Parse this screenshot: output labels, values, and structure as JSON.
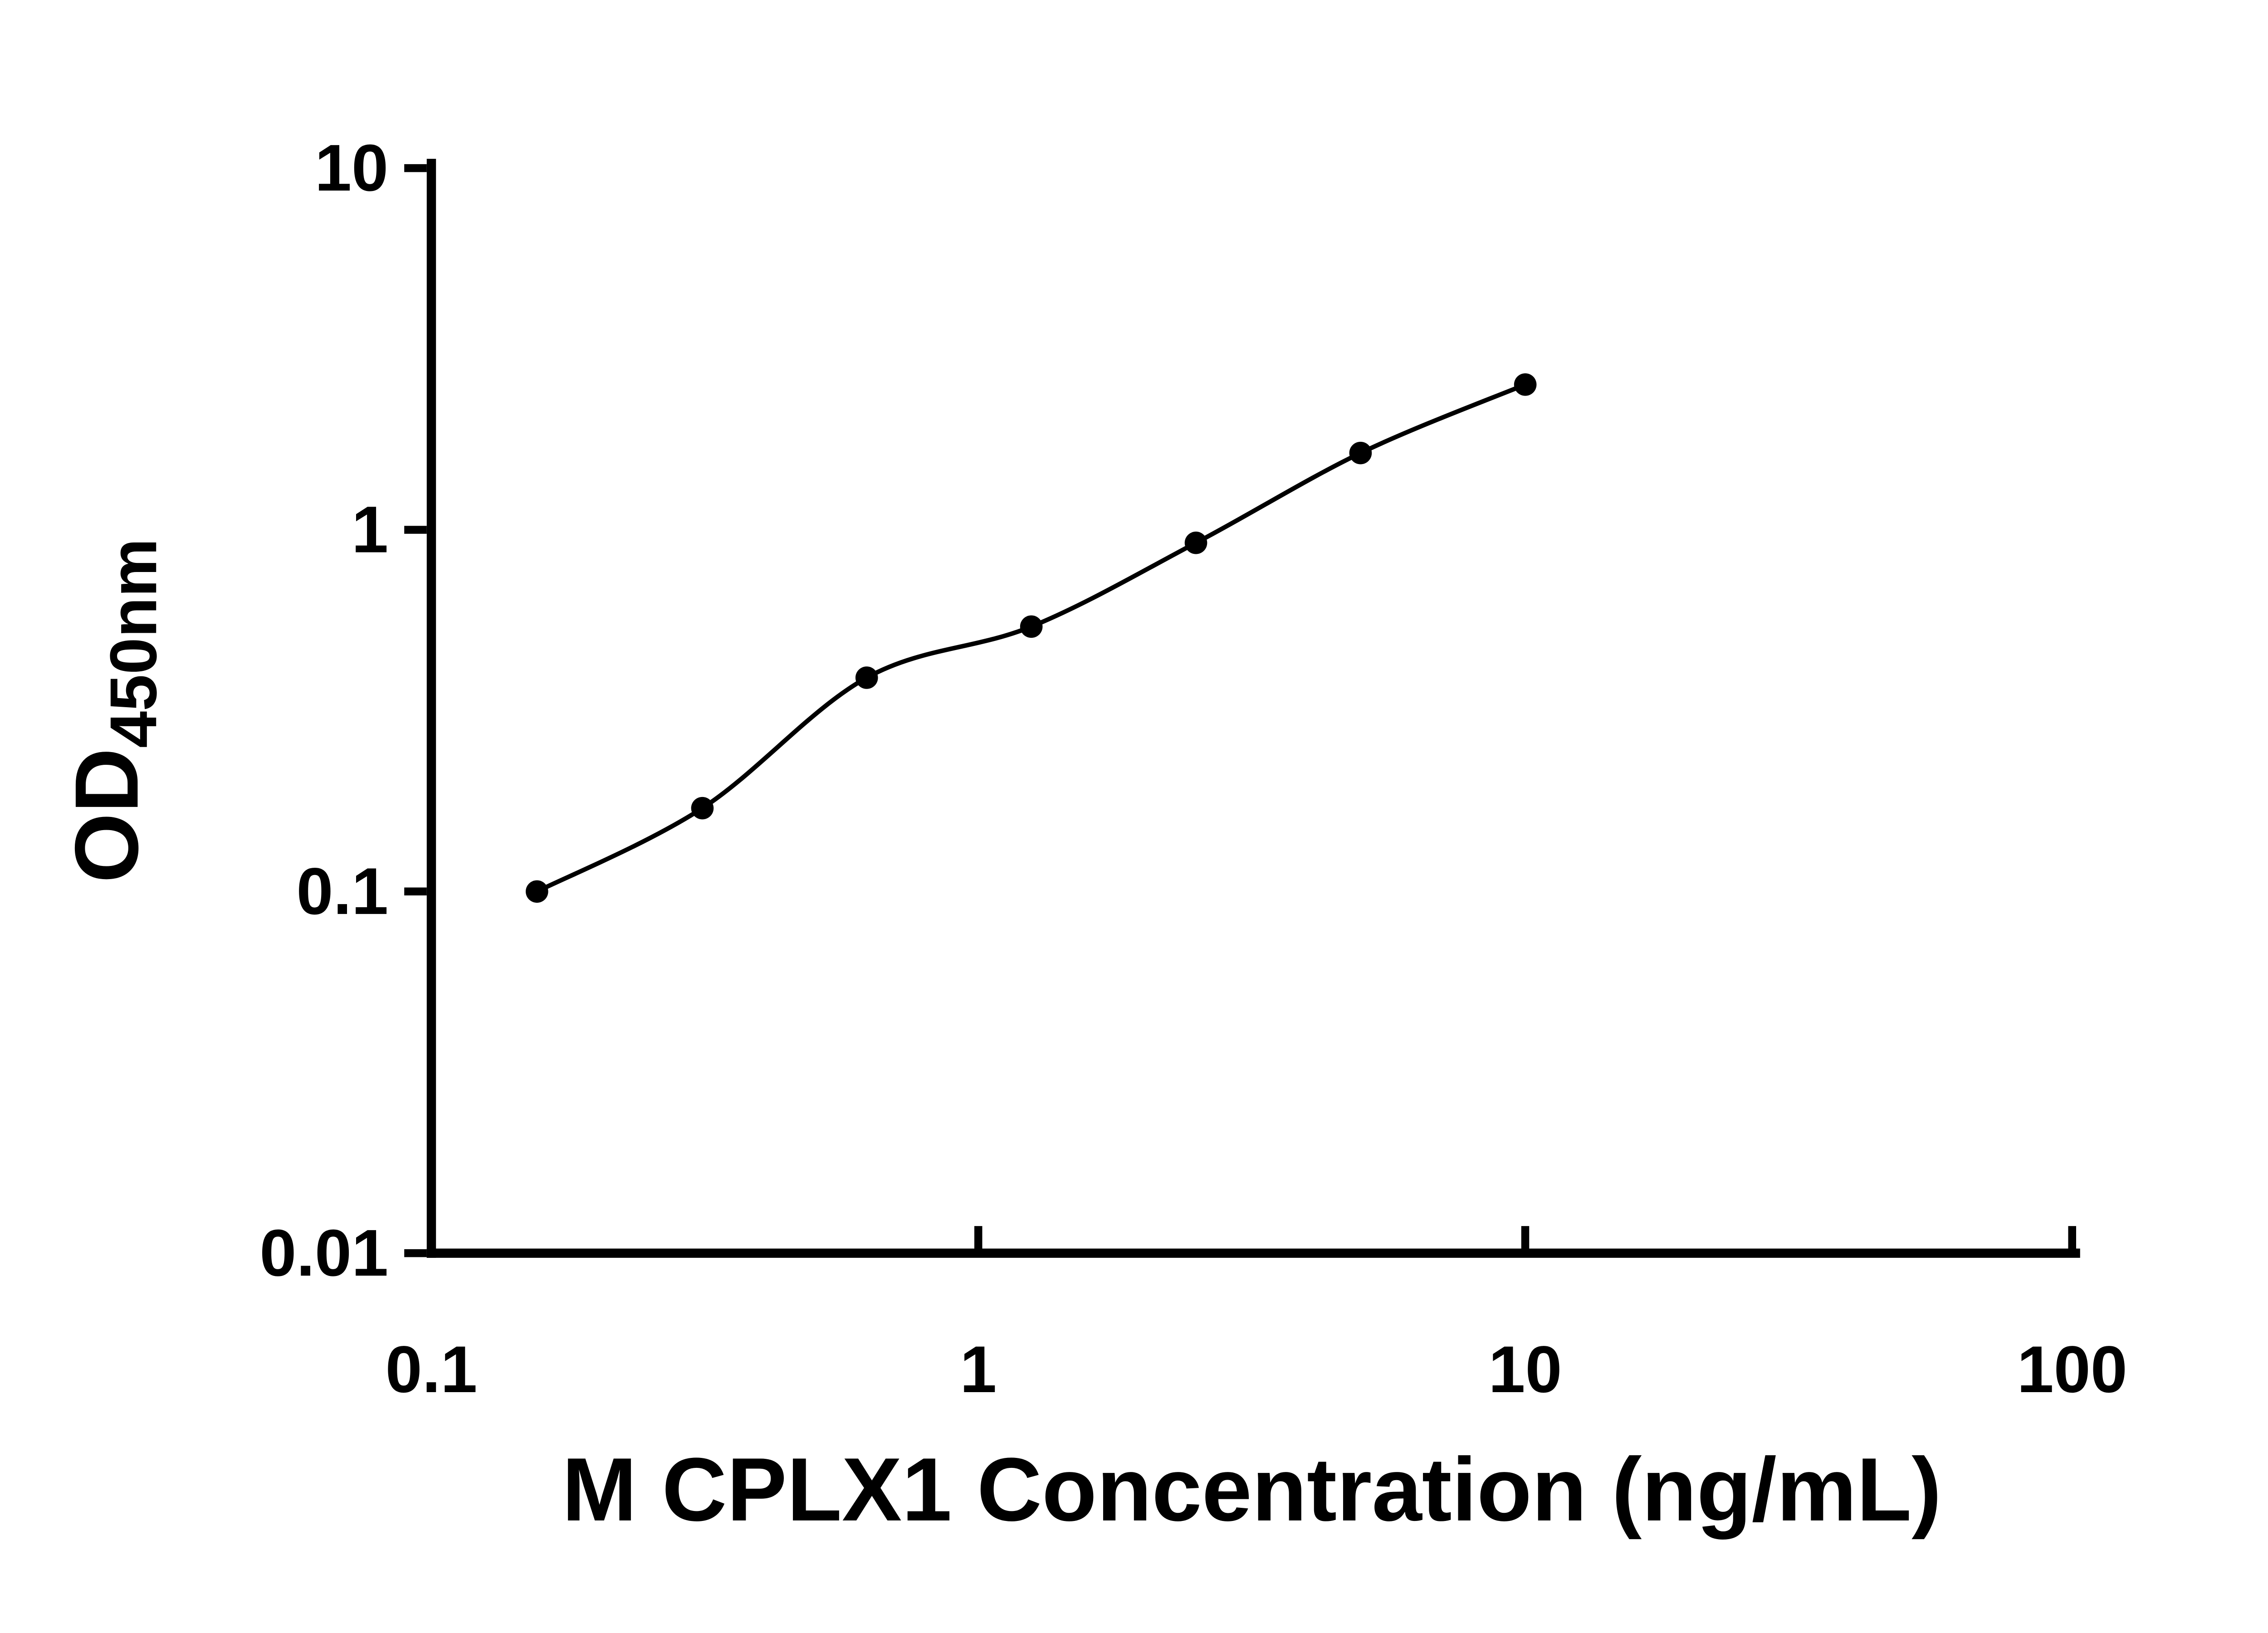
{
  "chart_data": {
    "type": "scatter",
    "curve_fit": "smooth",
    "title": "",
    "xlabel": "M CPLX1 Concentration (ng/mL)",
    "ylabel": "OD450nm",
    "ylabel_main": "OD",
    "ylabel_sub": "450nm",
    "x_scale": "log10",
    "y_scale": "log10",
    "xlim": [
      0.1,
      100
    ],
    "ylim": [
      0.01,
      10
    ],
    "grid": false,
    "x_ticks": [
      {
        "value": 0.1,
        "label": "0.1"
      },
      {
        "value": 1,
        "label": "1"
      },
      {
        "value": 10,
        "label": "10"
      },
      {
        "value": 100,
        "label": "100"
      }
    ],
    "y_ticks": [
      {
        "value": 0.01,
        "label": "0.01"
      },
      {
        "value": 0.1,
        "label": "0.1"
      },
      {
        "value": 1,
        "label": "1"
      },
      {
        "value": 10,
        "label": "10"
      }
    ],
    "points": [
      {
        "x": 0.156,
        "y": 0.1
      },
      {
        "x": 0.313,
        "y": 0.17
      },
      {
        "x": 0.625,
        "y": 0.39
      },
      {
        "x": 1.25,
        "y": 0.54
      },
      {
        "x": 2.5,
        "y": 0.92
      },
      {
        "x": 5,
        "y": 1.63
      },
      {
        "x": 10,
        "y": 2.52
      }
    ],
    "colors": {
      "axis": "#000000",
      "line": "#000000",
      "marker": "#000000",
      "text": "#000000",
      "background": "#ffffff"
    }
  }
}
